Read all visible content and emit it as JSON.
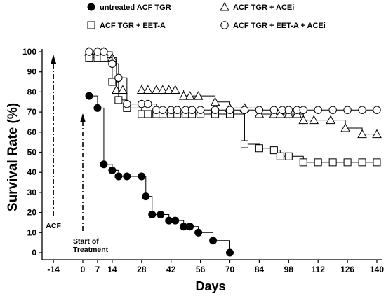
{
  "chart_data": {
    "type": "line",
    "xlabel": "Days",
    "ylabel": "Survival Rate (%)",
    "xlim": [
      -21,
      141
    ],
    "ylim": [
      -2,
      101
    ],
    "xticks": [
      -14,
      0,
      7,
      14,
      28,
      42,
      56,
      70,
      84,
      98,
      112,
      126,
      140
    ],
    "yticks": [
      0,
      10,
      20,
      30,
      40,
      50,
      60,
      70,
      80,
      90,
      100
    ],
    "grid": false,
    "legend_position": "top",
    "annotations": [
      {
        "text": "ACF",
        "x": -14
      },
      {
        "text_lines": [
          "Start of",
          "Treatment"
        ],
        "x": 0
      }
    ],
    "series": [
      {
        "name": "untreated ACF TGR",
        "marker": "filled-circle",
        "points": [
          [
            3,
            78
          ],
          [
            7,
            72
          ],
          [
            10,
            44
          ],
          [
            14,
            41
          ],
          [
            17,
            38
          ],
          [
            21,
            38
          ],
          [
            28,
            38
          ],
          [
            30,
            28
          ],
          [
            33,
            19
          ],
          [
            37,
            19
          ],
          [
            41,
            16
          ],
          [
            44,
            16
          ],
          [
            48,
            13
          ],
          [
            51,
            13
          ],
          [
            55,
            10
          ],
          [
            62,
            6
          ],
          [
            70,
            0
          ]
        ]
      },
      {
        "name": "ACF TGR + ACEi",
        "marker": "open-triangle",
        "points": [
          [
            3,
            100
          ],
          [
            7,
            100
          ],
          [
            10,
            100
          ],
          [
            14,
            97
          ],
          [
            16,
            81
          ],
          [
            19,
            81
          ],
          [
            28,
            81
          ],
          [
            31,
            81
          ],
          [
            35,
            81
          ],
          [
            38,
            81
          ],
          [
            41,
            81
          ],
          [
            44,
            81
          ],
          [
            48,
            78
          ],
          [
            51,
            78
          ],
          [
            55,
            78
          ],
          [
            63,
            75
          ],
          [
            70,
            72
          ],
          [
            77,
            72
          ],
          [
            84,
            69
          ],
          [
            91,
            69
          ],
          [
            94,
            69
          ],
          [
            98,
            69
          ],
          [
            102,
            69
          ],
          [
            105,
            66
          ],
          [
            110,
            66
          ],
          [
            118,
            66
          ],
          [
            125,
            62
          ],
          [
            133,
            59
          ],
          [
            140,
            59
          ]
        ]
      },
      {
        "name": "ACF TGR + EET-A",
        "marker": "open-square",
        "points": [
          [
            3,
            97
          ],
          [
            7,
            97
          ],
          [
            10,
            97
          ],
          [
            14,
            85
          ],
          [
            17,
            76
          ],
          [
            21,
            72
          ],
          [
            28,
            69
          ],
          [
            31,
            69
          ],
          [
            35,
            69
          ],
          [
            38,
            69
          ],
          [
            42,
            69
          ],
          [
            45,
            69
          ],
          [
            49,
            69
          ],
          [
            52,
            69
          ],
          [
            56,
            69
          ],
          [
            63,
            69
          ],
          [
            70,
            69
          ],
          [
            77,
            54
          ],
          [
            84,
            52
          ],
          [
            91,
            51
          ],
          [
            94,
            48
          ],
          [
            98,
            48
          ],
          [
            105,
            45
          ],
          [
            112,
            45
          ],
          [
            119,
            45
          ],
          [
            126,
            45
          ],
          [
            133,
            45
          ],
          [
            140,
            45
          ]
        ]
      },
      {
        "name": "ACF TGR + EET-A + ACEi",
        "marker": "open-circle",
        "points": [
          [
            3,
            100
          ],
          [
            7,
            100
          ],
          [
            10,
            100
          ],
          [
            14,
            94
          ],
          [
            17,
            87
          ],
          [
            21,
            74
          ],
          [
            28,
            74
          ],
          [
            31,
            74
          ],
          [
            35,
            71
          ],
          [
            38,
            71
          ],
          [
            42,
            71
          ],
          [
            45,
            71
          ],
          [
            49,
            71
          ],
          [
            52,
            71
          ],
          [
            56,
            71
          ],
          [
            63,
            71
          ],
          [
            70,
            71
          ],
          [
            77,
            71
          ],
          [
            84,
            71
          ],
          [
            91,
            71
          ],
          [
            95,
            71
          ],
          [
            98,
            71
          ],
          [
            102,
            71
          ],
          [
            105,
            71
          ],
          [
            112,
            71
          ],
          [
            119,
            71
          ],
          [
            126,
            71
          ],
          [
            133,
            71
          ],
          [
            140,
            71
          ]
        ]
      }
    ]
  }
}
